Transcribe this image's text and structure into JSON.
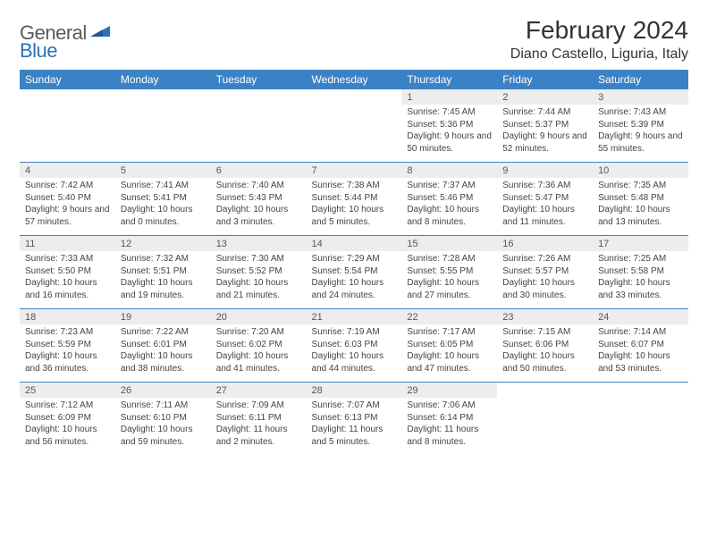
{
  "logo": {
    "text1": "General",
    "text2": "Blue"
  },
  "title": "February 2024",
  "location": "Diano Castello, Liguria, Italy",
  "colors": {
    "header_bg": "#3b82c4",
    "header_text": "#ffffff",
    "daynum_bg": "#ededed",
    "rule": "#3b82c4",
    "logo_gray": "#5a5a5a",
    "logo_blue": "#2a72b5"
  },
  "day_names": [
    "Sunday",
    "Monday",
    "Tuesday",
    "Wednesday",
    "Thursday",
    "Friday",
    "Saturday"
  ],
  "weeks": [
    [
      null,
      null,
      null,
      null,
      {
        "n": "1",
        "sunrise": "Sunrise: 7:45 AM",
        "sunset": "Sunset: 5:36 PM",
        "daylight": "Daylight: 9 hours and 50 minutes."
      },
      {
        "n": "2",
        "sunrise": "Sunrise: 7:44 AM",
        "sunset": "Sunset: 5:37 PM",
        "daylight": "Daylight: 9 hours and 52 minutes."
      },
      {
        "n": "3",
        "sunrise": "Sunrise: 7:43 AM",
        "sunset": "Sunset: 5:39 PM",
        "daylight": "Daylight: 9 hours and 55 minutes."
      }
    ],
    [
      {
        "n": "4",
        "sunrise": "Sunrise: 7:42 AM",
        "sunset": "Sunset: 5:40 PM",
        "daylight": "Daylight: 9 hours and 57 minutes."
      },
      {
        "n": "5",
        "sunrise": "Sunrise: 7:41 AM",
        "sunset": "Sunset: 5:41 PM",
        "daylight": "Daylight: 10 hours and 0 minutes."
      },
      {
        "n": "6",
        "sunrise": "Sunrise: 7:40 AM",
        "sunset": "Sunset: 5:43 PM",
        "daylight": "Daylight: 10 hours and 3 minutes."
      },
      {
        "n": "7",
        "sunrise": "Sunrise: 7:38 AM",
        "sunset": "Sunset: 5:44 PM",
        "daylight": "Daylight: 10 hours and 5 minutes."
      },
      {
        "n": "8",
        "sunrise": "Sunrise: 7:37 AM",
        "sunset": "Sunset: 5:46 PM",
        "daylight": "Daylight: 10 hours and 8 minutes."
      },
      {
        "n": "9",
        "sunrise": "Sunrise: 7:36 AM",
        "sunset": "Sunset: 5:47 PM",
        "daylight": "Daylight: 10 hours and 11 minutes."
      },
      {
        "n": "10",
        "sunrise": "Sunrise: 7:35 AM",
        "sunset": "Sunset: 5:48 PM",
        "daylight": "Daylight: 10 hours and 13 minutes."
      }
    ],
    [
      {
        "n": "11",
        "sunrise": "Sunrise: 7:33 AM",
        "sunset": "Sunset: 5:50 PM",
        "daylight": "Daylight: 10 hours and 16 minutes."
      },
      {
        "n": "12",
        "sunrise": "Sunrise: 7:32 AM",
        "sunset": "Sunset: 5:51 PM",
        "daylight": "Daylight: 10 hours and 19 minutes."
      },
      {
        "n": "13",
        "sunrise": "Sunrise: 7:30 AM",
        "sunset": "Sunset: 5:52 PM",
        "daylight": "Daylight: 10 hours and 21 minutes."
      },
      {
        "n": "14",
        "sunrise": "Sunrise: 7:29 AM",
        "sunset": "Sunset: 5:54 PM",
        "daylight": "Daylight: 10 hours and 24 minutes."
      },
      {
        "n": "15",
        "sunrise": "Sunrise: 7:28 AM",
        "sunset": "Sunset: 5:55 PM",
        "daylight": "Daylight: 10 hours and 27 minutes."
      },
      {
        "n": "16",
        "sunrise": "Sunrise: 7:26 AM",
        "sunset": "Sunset: 5:57 PM",
        "daylight": "Daylight: 10 hours and 30 minutes."
      },
      {
        "n": "17",
        "sunrise": "Sunrise: 7:25 AM",
        "sunset": "Sunset: 5:58 PM",
        "daylight": "Daylight: 10 hours and 33 minutes."
      }
    ],
    [
      {
        "n": "18",
        "sunrise": "Sunrise: 7:23 AM",
        "sunset": "Sunset: 5:59 PM",
        "daylight": "Daylight: 10 hours and 36 minutes."
      },
      {
        "n": "19",
        "sunrise": "Sunrise: 7:22 AM",
        "sunset": "Sunset: 6:01 PM",
        "daylight": "Daylight: 10 hours and 38 minutes."
      },
      {
        "n": "20",
        "sunrise": "Sunrise: 7:20 AM",
        "sunset": "Sunset: 6:02 PM",
        "daylight": "Daylight: 10 hours and 41 minutes."
      },
      {
        "n": "21",
        "sunrise": "Sunrise: 7:19 AM",
        "sunset": "Sunset: 6:03 PM",
        "daylight": "Daylight: 10 hours and 44 minutes."
      },
      {
        "n": "22",
        "sunrise": "Sunrise: 7:17 AM",
        "sunset": "Sunset: 6:05 PM",
        "daylight": "Daylight: 10 hours and 47 minutes."
      },
      {
        "n": "23",
        "sunrise": "Sunrise: 7:15 AM",
        "sunset": "Sunset: 6:06 PM",
        "daylight": "Daylight: 10 hours and 50 minutes."
      },
      {
        "n": "24",
        "sunrise": "Sunrise: 7:14 AM",
        "sunset": "Sunset: 6:07 PM",
        "daylight": "Daylight: 10 hours and 53 minutes."
      }
    ],
    [
      {
        "n": "25",
        "sunrise": "Sunrise: 7:12 AM",
        "sunset": "Sunset: 6:09 PM",
        "daylight": "Daylight: 10 hours and 56 minutes."
      },
      {
        "n": "26",
        "sunrise": "Sunrise: 7:11 AM",
        "sunset": "Sunset: 6:10 PM",
        "daylight": "Daylight: 10 hours and 59 minutes."
      },
      {
        "n": "27",
        "sunrise": "Sunrise: 7:09 AM",
        "sunset": "Sunset: 6:11 PM",
        "daylight": "Daylight: 11 hours and 2 minutes."
      },
      {
        "n": "28",
        "sunrise": "Sunrise: 7:07 AM",
        "sunset": "Sunset: 6:13 PM",
        "daylight": "Daylight: 11 hours and 5 minutes."
      },
      {
        "n": "29",
        "sunrise": "Sunrise: 7:06 AM",
        "sunset": "Sunset: 6:14 PM",
        "daylight": "Daylight: 11 hours and 8 minutes."
      },
      null,
      null
    ]
  ]
}
